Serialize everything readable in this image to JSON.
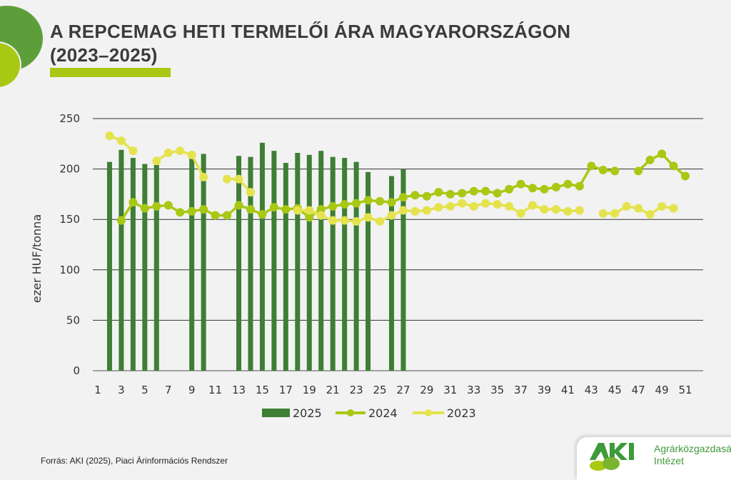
{
  "header": {
    "title_line1": "A REPCEMAG HETI TERMELŐI ÁRA MAGYARORSZÁGON",
    "title_line2": "(2023–2025)"
  },
  "footer": {
    "source": "Forrás: AKI (2025), Piaci Árinformációs Rendszer",
    "logo_text": "AKI",
    "logo_line1": "Agrárközgazdasági",
    "logo_line2": "Intézet"
  },
  "colors": {
    "bar_2025": "#3e7e35",
    "line_2024": "#a8c813",
    "line_2023": "#e4e34d",
    "background": "#f2f2f2"
  },
  "chart_data": {
    "type": "bar+line",
    "title": "A REPCEMAG HETI TERMELŐI ÁRA MAGYARORSZÁGON (2023–2025)",
    "xlabel": "",
    "ylabel": "ezer HUF/tonna",
    "ylim": [
      0,
      250
    ],
    "yticks": [
      "0",
      "50",
      "100",
      "150",
      "200",
      "250"
    ],
    "xticks": [
      "1",
      "3",
      "5",
      "7",
      "9",
      "11",
      "13",
      "15",
      "17",
      "19",
      "21",
      "23",
      "25",
      "27",
      "29",
      "31",
      "33",
      "35",
      "37",
      "39",
      "41",
      "43",
      "45",
      "47",
      "49",
      "51"
    ],
    "x_weeks_first": 1,
    "grid": true,
    "legend": "bottom",
    "series": [
      {
        "name": "2025",
        "kind": "bar",
        "values": [
          null,
          207,
          219,
          211,
          205,
          204,
          null,
          null,
          211,
          215,
          null,
          null,
          213,
          212,
          226,
          218,
          206,
          216,
          214,
          218,
          212,
          211,
          207,
          197,
          null,
          193,
          200
        ]
      },
      {
        "name": "2024",
        "kind": "line",
        "values": [
          null,
          null,
          149,
          167,
          161,
          163,
          164,
          157,
          158,
          160,
          154,
          154,
          164,
          160,
          155,
          162,
          160,
          161,
          152,
          160,
          163,
          165,
          166,
          169,
          168,
          167,
          172,
          174,
          173,
          177,
          175,
          176,
          178,
          178,
          176,
          180,
          185,
          181,
          180,
          182,
          185,
          183,
          203,
          199,
          198,
          null,
          198,
          209,
          215,
          203,
          193
        ]
      },
      {
        "name": "2023",
        "kind": "line",
        "values": [
          null,
          233,
          228,
          218,
          null,
          208,
          216,
          218,
          214,
          192,
          null,
          190,
          190,
          177,
          null,
          null,
          null,
          159,
          159,
          154,
          149,
          149,
          148,
          152,
          148,
          154,
          159,
          158,
          159,
          162,
          163,
          166,
          163,
          166,
          165,
          163,
          156,
          164,
          160,
          160,
          158,
          159,
          null,
          156,
          156,
          163,
          161,
          155,
          163,
          161
        ]
      }
    ]
  }
}
